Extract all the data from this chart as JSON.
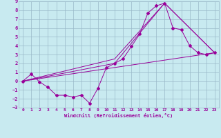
{
  "xlabel": "Windchill (Refroidissement éolien,°C)",
  "bg_color": "#c8eaf0",
  "grid_color": "#9ab8c8",
  "line_color": "#990099",
  "xlim": [
    -0.5,
    23.5
  ],
  "ylim": [
    -3,
    9
  ],
  "xticks": [
    0,
    1,
    2,
    3,
    4,
    5,
    6,
    7,
    8,
    9,
    10,
    11,
    12,
    13,
    14,
    15,
    16,
    17,
    18,
    19,
    20,
    21,
    22,
    23
  ],
  "yticks": [
    -3,
    -2,
    -1,
    0,
    1,
    2,
    3,
    4,
    5,
    6,
    7,
    8,
    9
  ],
  "line1_x": [
    0,
    1,
    2,
    3,
    4,
    5,
    6,
    7,
    8,
    9,
    10,
    11,
    12,
    13,
    14,
    15,
    16,
    17,
    18,
    19,
    20,
    21,
    22,
    23
  ],
  "line1_y": [
    0.0,
    0.8,
    -0.1,
    -0.7,
    -1.6,
    -1.6,
    -1.8,
    -1.6,
    -2.5,
    -0.8,
    1.5,
    2.0,
    2.5,
    3.9,
    5.3,
    7.7,
    8.5,
    8.8,
    6.0,
    5.8,
    4.0,
    3.2,
    3.0,
    3.2
  ],
  "line2_x": [
    0,
    23
  ],
  "line2_y": [
    0.0,
    3.2
  ],
  "line3_x": [
    0,
    11,
    17,
    23
  ],
  "line3_y": [
    0.0,
    2.5,
    8.8,
    3.2
  ],
  "line4_x": [
    0,
    11,
    17,
    23
  ],
  "line4_y": [
    0.0,
    2.0,
    8.8,
    3.2
  ]
}
